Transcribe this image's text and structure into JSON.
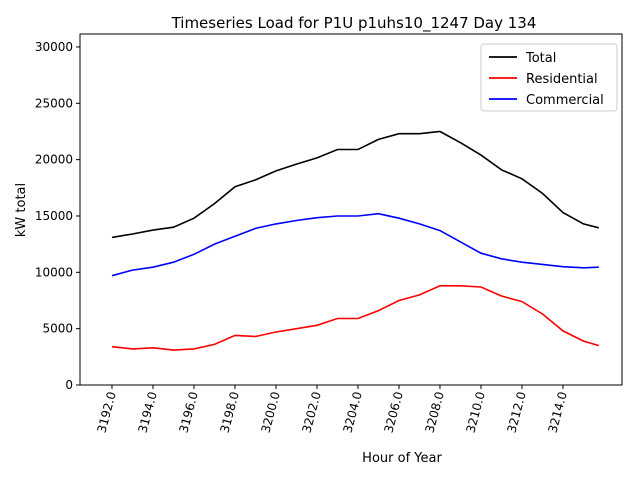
{
  "chart_data": {
    "type": "line",
    "title": "Timeseries Load for P1U p1uhs10_1247  Day 134",
    "xlabel": "Hour of Year",
    "ylabel": "kW total",
    "xlim": [
      3190.44,
      3216.88
    ],
    "ylim": [
      0,
      31150
    ],
    "xticks": [
      3192,
      3194,
      3196,
      3198,
      3200,
      3202,
      3204,
      3206,
      3208,
      3210,
      3212,
      3214
    ],
    "xtick_labels": [
      "3192.0",
      "3194.0",
      "3196.0",
      "3198.0",
      "3200.0",
      "3202.0",
      "3204.0",
      "3206.0",
      "3208.0",
      "3210.0",
      "3212.0",
      "3214.0"
    ],
    "yticks": [
      0,
      5000,
      10000,
      15000,
      20000,
      25000,
      30000
    ],
    "ytick_labels": [
      "0",
      "5000",
      "10000",
      "15000",
      "20000",
      "25000",
      "30000"
    ],
    "legend_position": "top-right",
    "grid": false,
    "x": [
      3192,
      3193,
      3194,
      3195,
      3196,
      3197,
      3198,
      3199,
      3200,
      3201,
      3202,
      3203,
      3204,
      3205,
      3206,
      3207,
      3208,
      3209,
      3210,
      3211,
      3212,
      3213,
      3214,
      3215,
      3215.75
    ],
    "series": [
      {
        "name": "Total",
        "color": "#000000",
        "values": [
          13100,
          13400,
          13750,
          14000,
          14800,
          16100,
          17600,
          18200,
          19000,
          19600,
          20150,
          20900,
          20900,
          21800,
          22300,
          22300,
          22500,
          21500,
          20400,
          19100,
          18300,
          17000,
          15300,
          14300,
          13950
        ]
      },
      {
        "name": "Residential",
        "color": "#ff0000",
        "values": [
          3400,
          3200,
          3300,
          3100,
          3200,
          3600,
          4400,
          4300,
          4700,
          5000,
          5300,
          5900,
          5900,
          6600,
          7500,
          8000,
          8800,
          8800,
          8700,
          7900,
          7400,
          6300,
          4800,
          3900,
          3500
        ]
      },
      {
        "name": "Commercial",
        "color": "#0000ff",
        "values": [
          9700,
          10200,
          10450,
          10900,
          11600,
          12500,
          13200,
          13900,
          14300,
          14600,
          14850,
          15000,
          15000,
          15200,
          14800,
          14300,
          13700,
          12700,
          11700,
          11200,
          10900,
          10700,
          10500,
          10400,
          10450
        ]
      }
    ]
  }
}
